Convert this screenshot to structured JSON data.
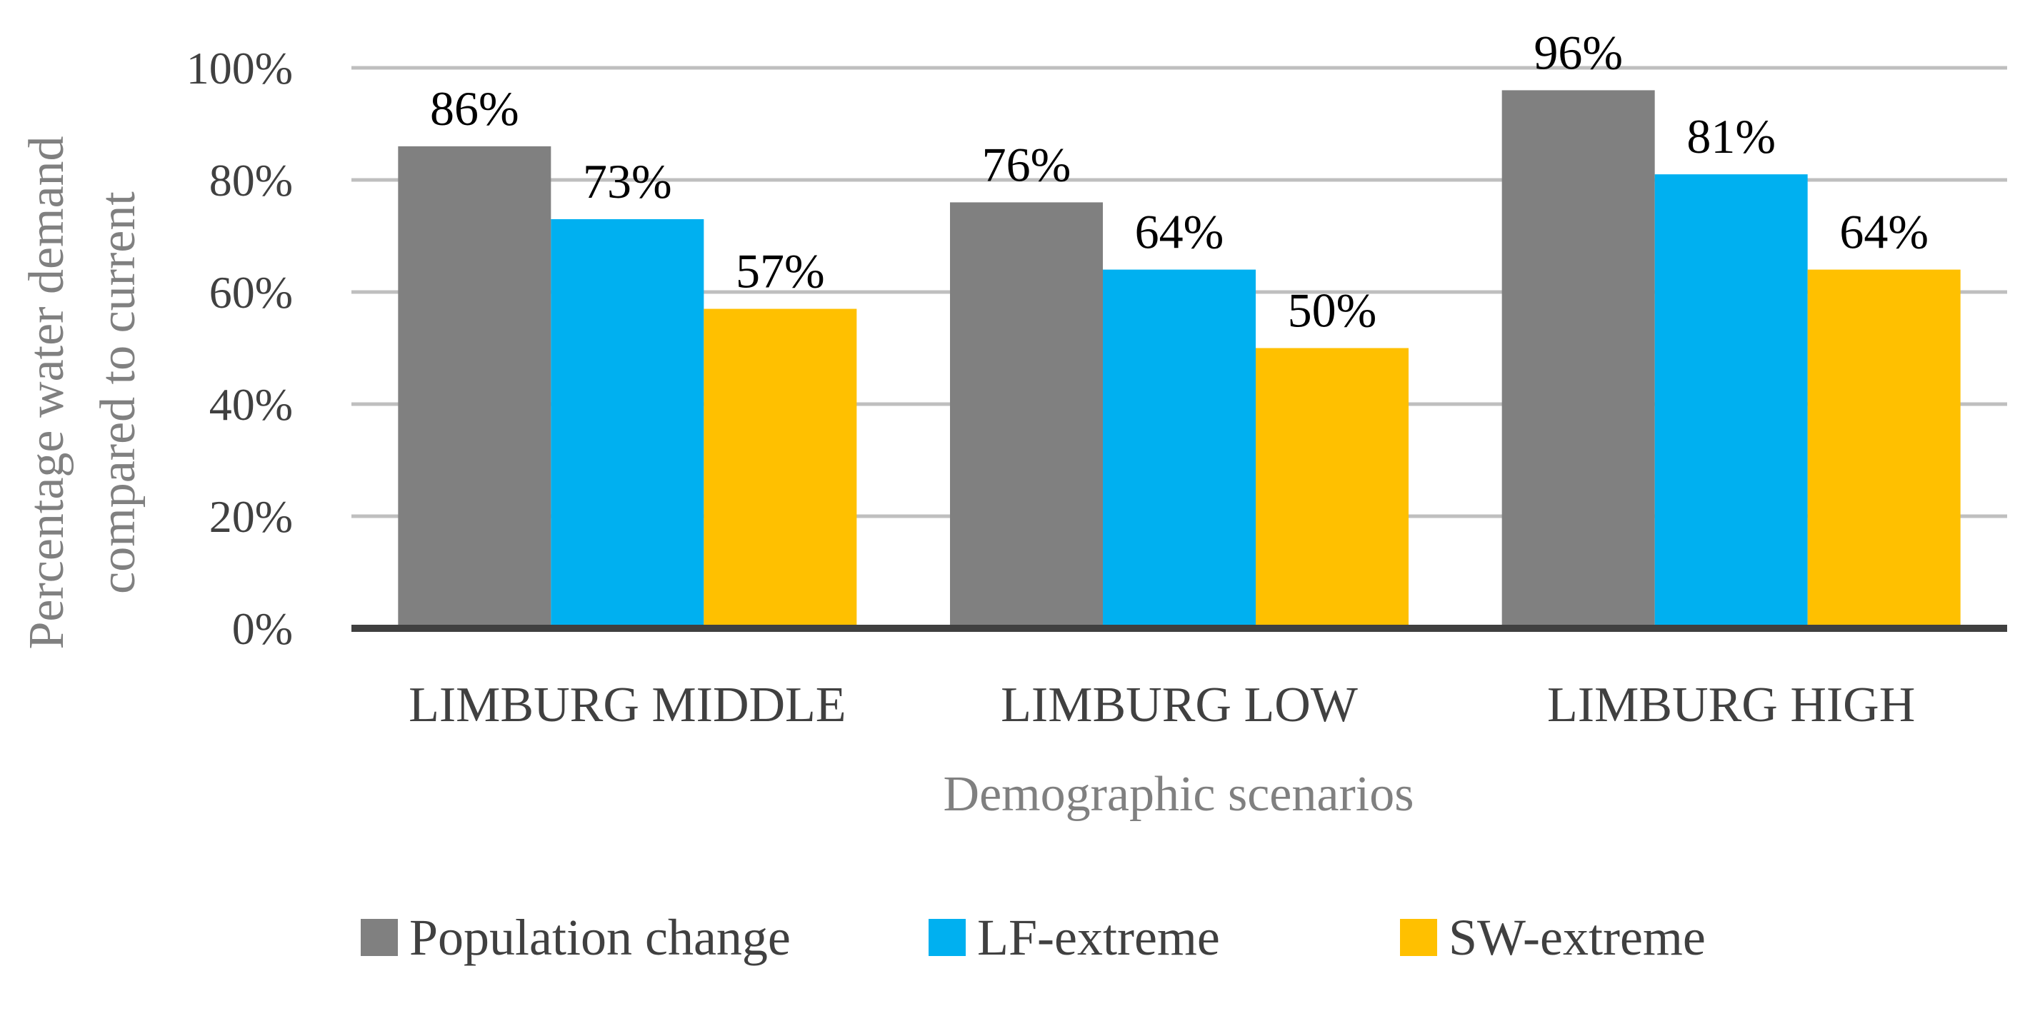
{
  "chart_data": {
    "type": "bar",
    "title": "",
    "xlabel": "Demographic scenarios",
    "ylabel_lines": [
      "Percentage water demand",
      "compared to current"
    ],
    "categories": [
      "LIMBURG MIDDLE",
      "LIMBURG LOW",
      "LIMBURG HIGH"
    ],
    "series": [
      {
        "name": "Population change",
        "color": "#808080",
        "values": [
          86,
          76,
          96
        ],
        "labels": [
          "86%",
          "76%",
          "96%"
        ]
      },
      {
        "name": "LF-extreme",
        "color": "#00B0F0",
        "values": [
          73,
          64,
          81
        ],
        "labels": [
          "73%",
          "64%",
          "81%"
        ]
      },
      {
        "name": "SW-extreme",
        "color": "#FFC000",
        "values": [
          57,
          50,
          64
        ],
        "labels": [
          "57%",
          "50%",
          "64%"
        ]
      }
    ],
    "ylim": [
      0,
      100
    ],
    "yticks": [
      0,
      20,
      40,
      60,
      80,
      100
    ],
    "ytick_labels": [
      "0%",
      "20%",
      "40%",
      "60%",
      "80%",
      "100%"
    ],
    "grid": true,
    "legend_position": "bottom",
    "colors": {
      "grid": "#BFBFBF",
      "baseline": "#404040"
    }
  }
}
